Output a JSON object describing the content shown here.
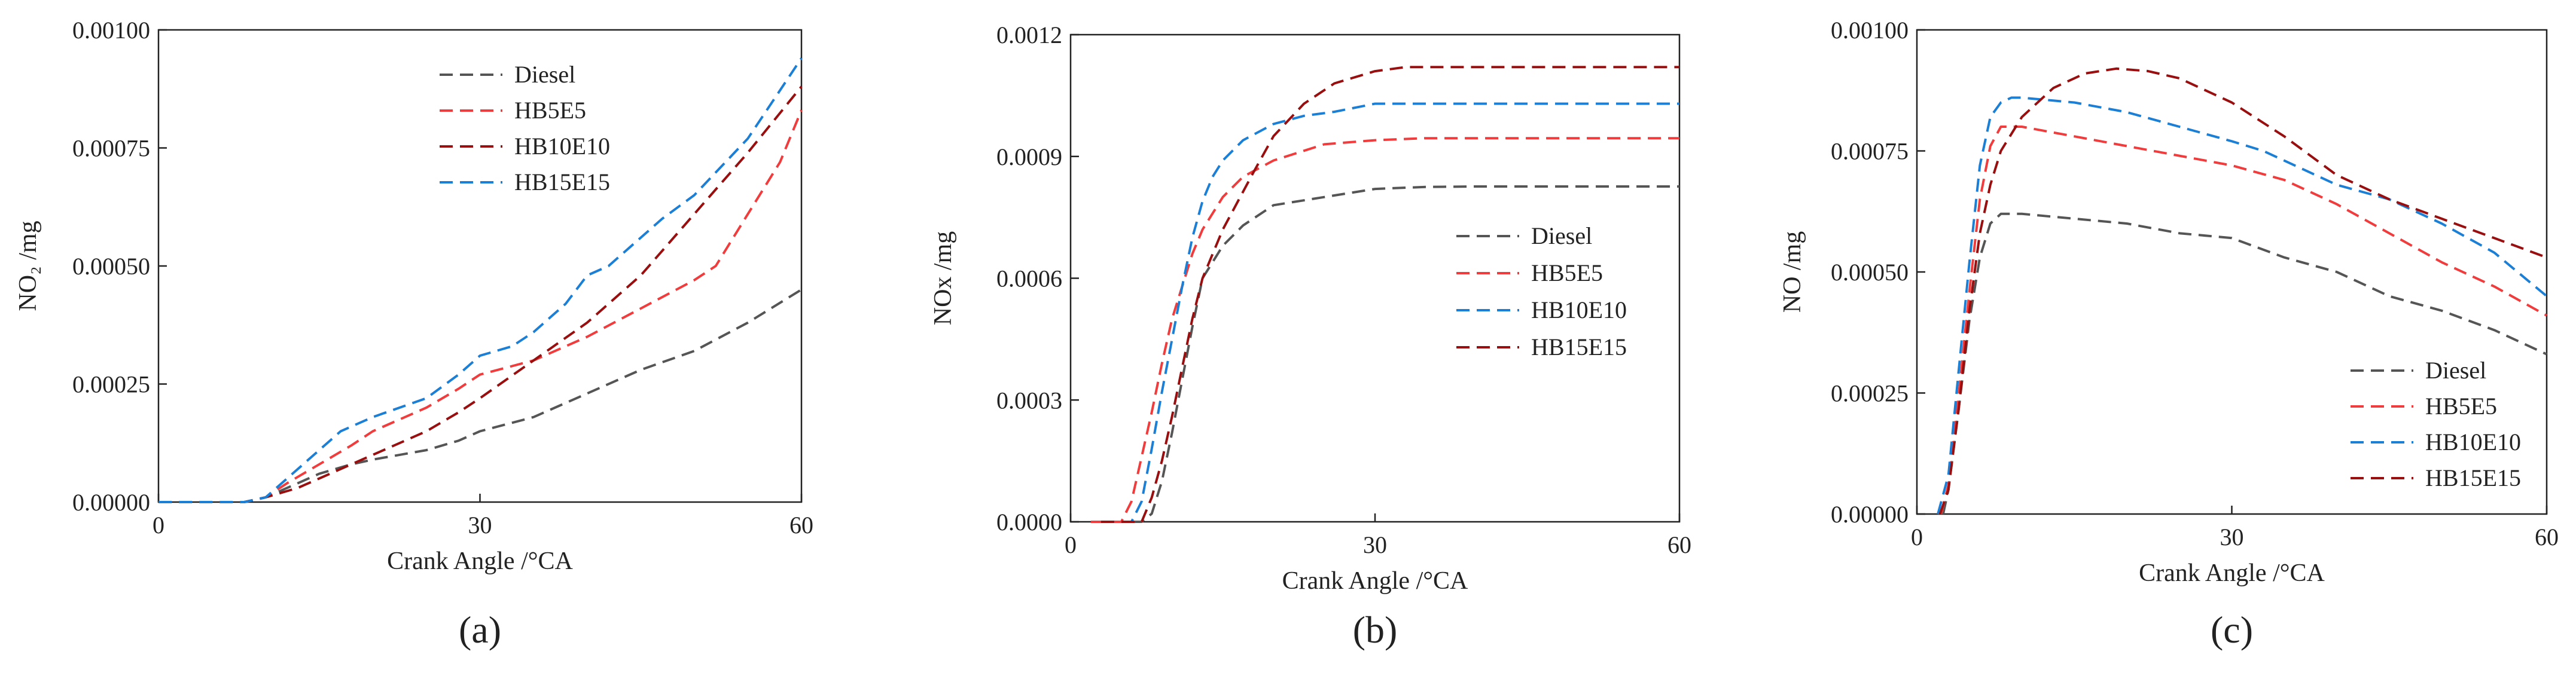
{
  "chart_data": [
    {
      "type": "line",
      "panel_label": "(a)",
      "xlabel": "Crank Angle /°CA",
      "ylabel": "NO₂ /mg",
      "xlim": [
        0,
        60
      ],
      "ylim": [
        0,
        0.001
      ],
      "xticks": [
        "0",
        "30",
        "60"
      ],
      "yticks": [
        "0.00000",
        "0.00025",
        "0.00050",
        "0.00075",
        "0.00100"
      ],
      "legend_position": "top-center",
      "series": [
        {
          "name": "Diesel",
          "color": "#555555",
          "x": [
            0,
            5,
            8,
            10,
            13,
            15,
            18,
            20,
            25,
            28,
            30,
            35,
            40,
            45,
            50,
            55,
            60
          ],
          "y": [
            0,
            0,
            0,
            1e-05,
            4e-05,
            6e-05,
            8e-05,
            9e-05,
            0.00011,
            0.00013,
            0.00015,
            0.00018,
            0.00023,
            0.00028,
            0.00032,
            0.00038,
            0.00045
          ]
        },
        {
          "name": "HB5E5",
          "color": "#f03c3c",
          "x": [
            0,
            5,
            8,
            10,
            12,
            15,
            18,
            20,
            25,
            28,
            30,
            35,
            40,
            45,
            50,
            52,
            55,
            58,
            60
          ],
          "y": [
            0,
            0,
            0,
            1e-05,
            4e-05,
            8e-05,
            0.00012,
            0.00015,
            0.0002,
            0.00024,
            0.00027,
            0.0003,
            0.00035,
            0.00041,
            0.00047,
            0.0005,
            0.00061,
            0.00072,
            0.00083
          ]
        },
        {
          "name": "HB10E10",
          "color": "#990f0f",
          "x": [
            0,
            5,
            8,
            10,
            13,
            15,
            18,
            20,
            25,
            28,
            30,
            35,
            40,
            45,
            50,
            55,
            60
          ],
          "y": [
            0,
            0,
            0,
            1e-05,
            3e-05,
            5e-05,
            8e-05,
            0.0001,
            0.00015,
            0.00019,
            0.00022,
            0.0003,
            0.00038,
            0.00048,
            0.00061,
            0.00074,
            0.00088
          ]
        },
        {
          "name": "HB15E15",
          "color": "#1c7fd6",
          "x": [
            0,
            5,
            8,
            10,
            12,
            14,
            17,
            20,
            25,
            28,
            30,
            33,
            35,
            38,
            40,
            42,
            45,
            47,
            50,
            55,
            60
          ],
          "y": [
            0,
            0,
            0,
            1e-05,
            5e-05,
            9e-05,
            0.00015,
            0.00018,
            0.00022,
            0.00027,
            0.00031,
            0.00033,
            0.00036,
            0.00042,
            0.00048,
            0.0005,
            0.00056,
            0.0006,
            0.00065,
            0.00077,
            0.00094
          ]
        }
      ]
    },
    {
      "type": "line",
      "panel_label": "(b)",
      "xlabel": "Crank Angle /°CA",
      "ylabel": "NOx /mg",
      "xlim": [
        0,
        60
      ],
      "ylim": [
        0,
        0.0012
      ],
      "xticks": [
        "0",
        "30",
        "60"
      ],
      "yticks": [
        "0.0000",
        "0.0003",
        "0.0006",
        "0.0009",
        "0.0012"
      ],
      "legend_position": "center-right",
      "series": [
        {
          "name": "Diesel",
          "color": "#555555",
          "x": [
            2,
            6,
            7,
            8,
            9,
            10,
            11,
            12,
            13,
            15,
            17,
            20,
            25,
            30,
            35,
            40,
            60
          ],
          "y": [
            0,
            0,
            0,
            2e-05,
            0.0001,
            0.00022,
            0.00035,
            0.00048,
            0.0006,
            0.00068,
            0.00073,
            0.00078,
            0.0008,
            0.00082,
            0.000825,
            0.000826,
            0.000826
          ]
        },
        {
          "name": "HB5E5",
          "color": "#f03c3c",
          "x": [
            2,
            5,
            6,
            7,
            8,
            9,
            10,
            11,
            12,
            13,
            15,
            17,
            20,
            25,
            30,
            35,
            60
          ],
          "y": [
            0,
            0,
            5e-05,
            0.00016,
            0.00027,
            0.00039,
            0.0005,
            0.00058,
            0.00066,
            0.00072,
            0.0008,
            0.00085,
            0.00089,
            0.00093,
            0.00094,
            0.000945,
            0.000945
          ]
        },
        {
          "name": "HB10E10",
          "color": "#1c7fd6",
          "x": [
            3,
            6,
            7,
            8,
            9,
            10,
            11,
            12,
            13,
            14,
            15,
            17,
            20,
            23,
            26,
            30,
            35,
            60
          ],
          "y": [
            0,
            0,
            5e-05,
            0.00018,
            0.00032,
            0.00045,
            0.00058,
            0.0007,
            0.00079,
            0.00085,
            0.00089,
            0.00094,
            0.00098,
            0.001,
            0.00101,
            0.00103,
            0.00103,
            0.00103
          ]
        },
        {
          "name": "HB15E15",
          "color": "#990f0f",
          "x": [
            3,
            7,
            8,
            9,
            10,
            11,
            12,
            13,
            15,
            18,
            20,
            23,
            26,
            30,
            33,
            35,
            60
          ],
          "y": [
            0,
            0,
            6e-05,
            0.00015,
            0.00026,
            0.00038,
            0.0005,
            0.0006,
            0.00072,
            0.00086,
            0.00095,
            0.00103,
            0.00108,
            0.00111,
            0.00112,
            0.00112,
            0.00112
          ]
        }
      ]
    },
    {
      "type": "line",
      "panel_label": "(c)",
      "xlabel": "Crank Angle /°CA",
      "ylabel": "NO /mg",
      "xlim": [
        0,
        60
      ],
      "ylim": [
        0,
        0.001
      ],
      "xticks": [
        "0",
        "30",
        "60"
      ],
      "yticks": [
        "0.00000",
        "0.00025",
        "0.00050",
        "0.00075",
        "0.00100"
      ],
      "legend_position": "bottom-right",
      "series": [
        {
          "name": "Diesel",
          "color": "#555555",
          "x": [
            2.5,
            3,
            4,
            5,
            6,
            7,
            8,
            10,
            15,
            20,
            25,
            30,
            35,
            40,
            45,
            50,
            55,
            60
          ],
          "y": [
            0,
            5e-05,
            0.00022,
            0.0004,
            0.00053,
            0.0006,
            0.00062,
            0.00062,
            0.00061,
            0.0006,
            0.00058,
            0.00057,
            0.00053,
            0.0005,
            0.00045,
            0.00042,
            0.00038,
            0.00033
          ]
        },
        {
          "name": "HB5E5",
          "color": "#f03c3c",
          "x": [
            2.3,
            3,
            4,
            5,
            6,
            7,
            8,
            10,
            15,
            20,
            25,
            30,
            35,
            40,
            45,
            50,
            55,
            60
          ],
          "y": [
            0,
            6e-05,
            0.00025,
            0.00046,
            0.00065,
            0.00076,
            0.0008,
            0.0008,
            0.00078,
            0.00076,
            0.00074,
            0.00072,
            0.00069,
            0.00064,
            0.00058,
            0.00052,
            0.00047,
            0.00041
          ]
        },
        {
          "name": "HB10E10",
          "color": "#1c7fd6",
          "x": [
            2,
            3,
            4,
            5,
            6,
            7,
            8,
            9,
            10,
            15,
            20,
            25,
            30,
            33,
            36,
            40,
            45,
            50,
            55,
            60
          ],
          "y": [
            0,
            8e-05,
            0.0003,
            0.00052,
            0.00072,
            0.00082,
            0.00085,
            0.00086,
            0.00086,
            0.00085,
            0.00083,
            0.0008,
            0.00077,
            0.00075,
            0.00072,
            0.00068,
            0.00065,
            0.0006,
            0.00054,
            0.00045
          ]
        },
        {
          "name": "HB15E15",
          "color": "#990f0f",
          "x": [
            2.2,
            3,
            4,
            5,
            6,
            7,
            8,
            10,
            13,
            16,
            19,
            22,
            25,
            30,
            35,
            40,
            45,
            50,
            55,
            60
          ],
          "y": [
            0,
            5e-05,
            0.00022,
            0.00042,
            0.00058,
            0.00068,
            0.00075,
            0.00082,
            0.00088,
            0.00091,
            0.00092,
            0.000915,
            0.0009,
            0.00085,
            0.00078,
            0.0007,
            0.00065,
            0.00061,
            0.00057,
            0.00053
          ]
        }
      ]
    }
  ]
}
